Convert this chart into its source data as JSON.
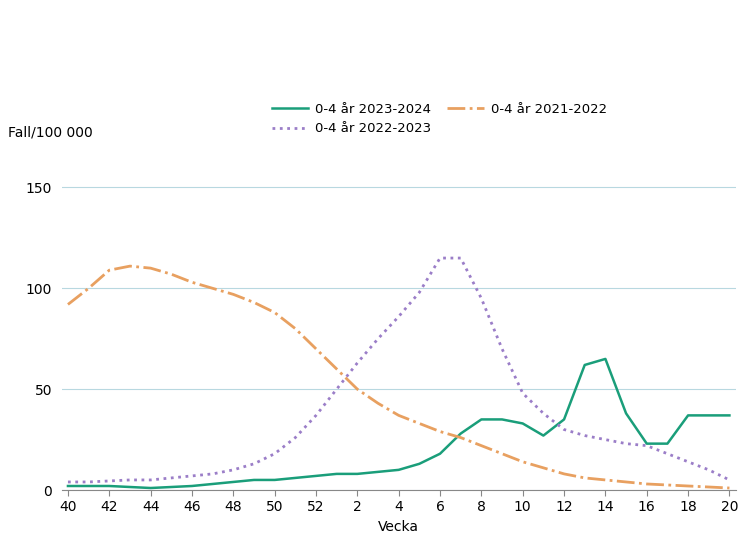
{
  "title": "",
  "ylabel": "Fall/100 000",
  "xlabel": "Vecka",
  "ylim": [
    0,
    160
  ],
  "yticks": [
    0,
    50,
    100,
    150
  ],
  "x_tick_labels": [
    "40",
    "42",
    "44",
    "46",
    "48",
    "50",
    "52",
    "2",
    "4",
    "6",
    "8",
    "10",
    "12",
    "14",
    "16",
    "18",
    "20"
  ],
  "x_tick_positions": [
    0,
    1,
    2,
    3,
    4,
    5,
    6,
    7,
    8,
    9,
    10,
    11,
    12,
    13,
    14,
    15,
    16
  ],
  "series_2023_2024": {
    "label": "0-4 år 2023-2024",
    "color": "#1a9e7a",
    "linestyle": "solid",
    "linewidth": 1.8,
    "x": [
      0,
      0.5,
      1,
      1.5,
      2,
      2.5,
      3,
      3.5,
      4,
      4.5,
      5,
      5.5,
      6,
      6.5,
      7,
      7.5,
      8,
      8.5,
      9,
      9.5,
      10,
      10.5,
      11,
      11.5,
      12,
      12.5,
      13,
      13.5,
      14,
      14.5,
      15,
      15.5,
      16
    ],
    "y": [
      2,
      2,
      2,
      1.5,
      1,
      1.5,
      2,
      3,
      4,
      5,
      5,
      6,
      7,
      8,
      8,
      9,
      10,
      13,
      18,
      28,
      35,
      35,
      33,
      27,
      35,
      62,
      65,
      38,
      23,
      23,
      37,
      37,
      37
    ]
  },
  "series_2022_2023": {
    "label": "0-4 år 2022-2023",
    "color": "#9b7ec8",
    "linestyle": "dotted",
    "linewidth": 2.0,
    "x": [
      0,
      0.5,
      1,
      1.5,
      2,
      2.5,
      3,
      3.5,
      4,
      4.5,
      5,
      5.5,
      6,
      6.5,
      7,
      7.5,
      8,
      8.5,
      9,
      9.5,
      10,
      10.5,
      11,
      11.5,
      12,
      12.5,
      13,
      13.5,
      14,
      14.5,
      15,
      15.5,
      16
    ],
    "y": [
      4,
      4,
      4.5,
      5,
      5,
      6,
      7,
      8,
      10,
      13,
      18,
      26,
      37,
      50,
      63,
      75,
      86,
      98,
      115,
      115,
      95,
      70,
      48,
      38,
      30,
      27,
      25,
      23,
      22,
      18,
      14,
      10,
      5
    ]
  },
  "series_2021_2022": {
    "label": "0-4 år 2021-2022",
    "color": "#e8a060",
    "linestyle": "dashdot",
    "linewidth": 2.0,
    "x": [
      0,
      0.5,
      1,
      1.5,
      2,
      2.5,
      3,
      3.5,
      4,
      4.5,
      5,
      5.5,
      6,
      6.5,
      7,
      7.5,
      8,
      8.5,
      9,
      9.5,
      10,
      10.5,
      11,
      11.5,
      12,
      12.5,
      13,
      13.5,
      14,
      14.5,
      15,
      15.5,
      16
    ],
    "y": [
      92,
      100,
      109,
      111,
      110,
      107,
      103,
      100,
      97,
      93,
      88,
      80,
      70,
      60,
      50,
      43,
      37,
      33,
      29,
      26,
      22,
      18,
      14,
      11,
      8,
      6,
      5,
      4,
      3,
      2.5,
      2,
      1.5,
      1
    ]
  },
  "grid_color": "#b8d8e0",
  "background_color": "#ffffff",
  "legend_fontsize": 9.5,
  "axis_fontsize": 10,
  "tick_fontsize": 10
}
